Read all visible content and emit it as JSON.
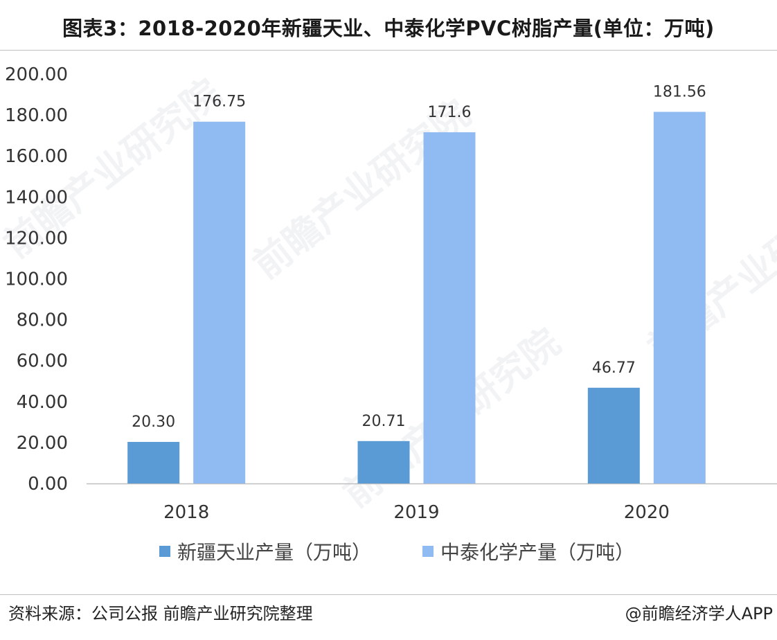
{
  "title": "图表3：2018-2020年新疆天业、中泰化学PVC树脂产量(单位：万吨)",
  "source": "资料来源：公司公报 前瞻产业研究院整理",
  "credit": "@前瞻经济学人APP",
  "watermark": "前瞻产业研究院",
  "colors": {
    "series1": "#5b9bd5",
    "series2": "#8fbbf2",
    "axis": "#bfbfbf",
    "text": "#333333"
  },
  "chart_data": {
    "type": "bar",
    "categories": [
      "2018",
      "2019",
      "2020"
    ],
    "series": [
      {
        "name": "新疆天业产量（万吨）",
        "values": [
          20.3,
          20.71,
          46.77
        ],
        "labels": [
          "20.30",
          "20.71",
          "46.77"
        ]
      },
      {
        "name": "中泰化学产量（万吨）",
        "values": [
          176.75,
          171.6,
          181.56
        ],
        "labels": [
          "176.75",
          "171.6",
          "181.56"
        ]
      }
    ],
    "yticks": [
      "0.00",
      "20.00",
      "40.00",
      "60.00",
      "80.00",
      "100.00",
      "120.00",
      "140.00",
      "160.00",
      "180.00",
      "200.00"
    ],
    "ylim": [
      0,
      200
    ],
    "grid": false,
    "legend_position": "bottom"
  }
}
